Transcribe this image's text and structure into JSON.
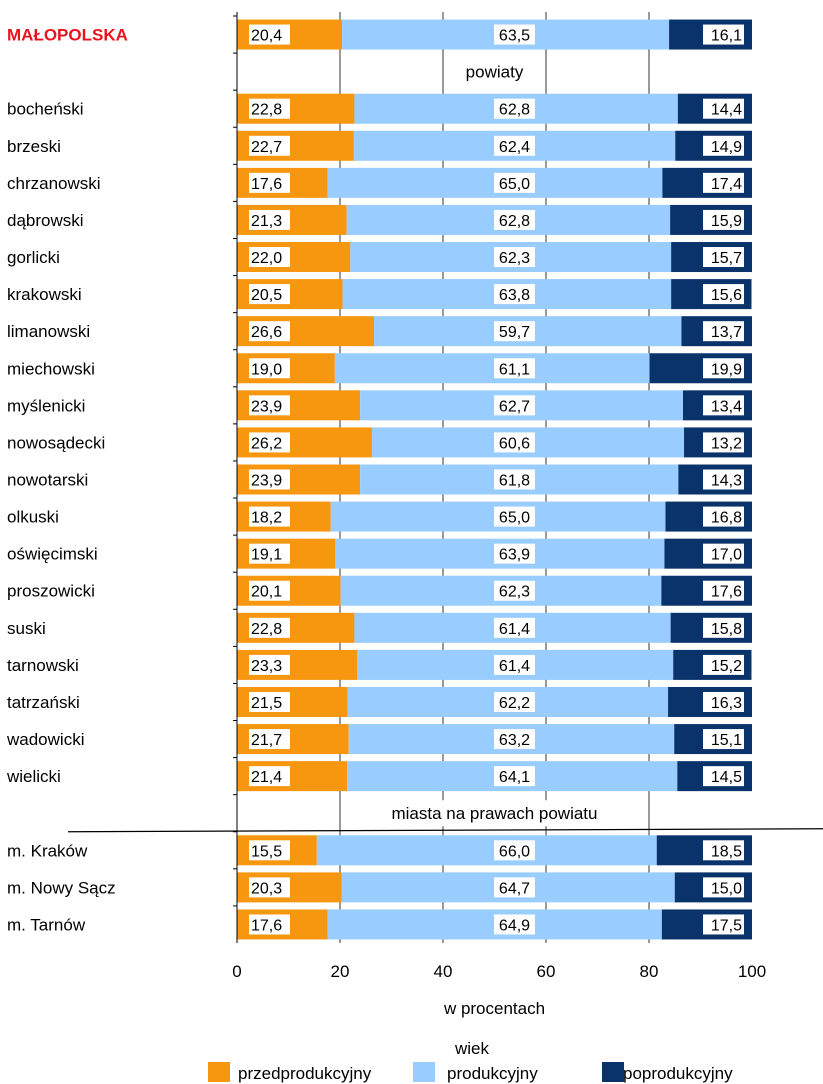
{
  "chart_data": {
    "type": "bar",
    "stacked": true,
    "orientation": "horizontal",
    "xlabel": "w procentach",
    "xlim": [
      0,
      100
    ],
    "xticks": [
      "0",
      "20",
      "40",
      "60",
      "80",
      "100"
    ],
    "grid": true,
    "legend": {
      "title": "wiek",
      "position": "bottom"
    },
    "colors": {
      "przedprodukcyjny": "#f7960f",
      "produkcyjny": "#99ccff",
      "poprodukcyjny": "#0b336b"
    },
    "series": [
      {
        "name": "przedprodukcyjny",
        "color": "#f7960f"
      },
      {
        "name": "produkcyjny",
        "color": "#99ccff"
      },
      {
        "name": "poprodukcyjny",
        "color": "#0b336b"
      }
    ],
    "rows": [
      {
        "kind": "bar",
        "category": "MAŁOPOLSKA",
        "highlight": true,
        "values": [
          "20,4",
          "63,5",
          "16,1"
        ]
      },
      {
        "kind": "header",
        "label": "powiaty"
      },
      {
        "kind": "bar",
        "category": "bocheński",
        "values": [
          "22,8",
          "62,8",
          "14,4"
        ]
      },
      {
        "kind": "bar",
        "category": "brzeski",
        "values": [
          "22,7",
          "62,4",
          "14,9"
        ]
      },
      {
        "kind": "bar",
        "category": "chrzanowski",
        "values": [
          "17,6",
          "65,0",
          "17,4"
        ]
      },
      {
        "kind": "bar",
        "category": "dąbrowski",
        "values": [
          "21,3",
          "62,8",
          "15,9"
        ]
      },
      {
        "kind": "bar",
        "category": "gorlicki",
        "values": [
          "22,0",
          "62,3",
          "15,7"
        ]
      },
      {
        "kind": "bar",
        "category": "krakowski",
        "values": [
          "20,5",
          "63,8",
          "15,6"
        ]
      },
      {
        "kind": "bar",
        "category": "limanowski",
        "values": [
          "26,6",
          "59,7",
          "13,7"
        ]
      },
      {
        "kind": "bar",
        "category": "miechowski",
        "values": [
          "19,0",
          "61,1",
          "19,9"
        ]
      },
      {
        "kind": "bar",
        "category": "myślenicki",
        "values": [
          "23,9",
          "62,7",
          "13,4"
        ]
      },
      {
        "kind": "bar",
        "category": "nowosądecki",
        "values": [
          "26,2",
          "60,6",
          "13,2"
        ]
      },
      {
        "kind": "bar",
        "category": "nowotarski",
        "values": [
          "23,9",
          "61,8",
          "14,3"
        ]
      },
      {
        "kind": "bar",
        "category": "olkuski",
        "values": [
          "18,2",
          "65,0",
          "16,8"
        ]
      },
      {
        "kind": "bar",
        "category": "oświęcimski",
        "values": [
          "19,1",
          "63,9",
          "17,0"
        ]
      },
      {
        "kind": "bar",
        "category": "proszowicki",
        "values": [
          "20,1",
          "62,3",
          "17,6"
        ]
      },
      {
        "kind": "bar",
        "category": "suski",
        "values": [
          "22,8",
          "61,4",
          "15,8"
        ]
      },
      {
        "kind": "bar",
        "category": "tarnowski",
        "values": [
          "23,3",
          "61,4",
          "15,2"
        ]
      },
      {
        "kind": "bar",
        "category": "tatrzański",
        "values": [
          "21,5",
          "62,2",
          "16,3"
        ]
      },
      {
        "kind": "bar",
        "category": "wadowicki",
        "values": [
          "21,7",
          "63,2",
          "15,1"
        ]
      },
      {
        "kind": "bar",
        "category": "wielicki",
        "values": [
          "21,4",
          "64,1",
          "14,5"
        ]
      },
      {
        "kind": "header",
        "label": "miasta na prawach powiatu"
      },
      {
        "kind": "bar",
        "category": "m. Kraków",
        "values": [
          "15,5",
          "66,0",
          "18,5"
        ]
      },
      {
        "kind": "bar",
        "category": "m. Nowy Sącz",
        "values": [
          "20,3",
          "64,7",
          "15,0"
        ]
      },
      {
        "kind": "bar",
        "category": "m. Tarnów",
        "values": [
          "17,6",
          "64,9",
          "17,5"
        ]
      }
    ]
  }
}
